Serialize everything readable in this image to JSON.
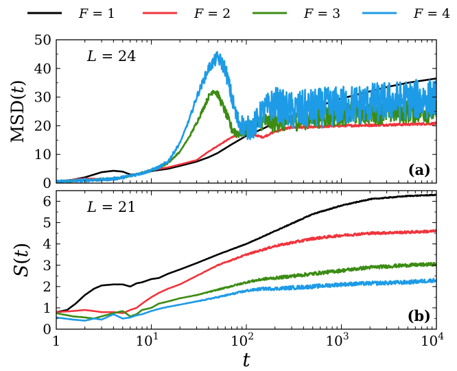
{
  "legend": {
    "position": "top",
    "entries": [
      {
        "label": "F = 1",
        "color": "#000000"
      },
      {
        "label": "F = 2",
        "color": "#f0343c"
      },
      {
        "label": "F = 3",
        "color": "#3c8c14"
      },
      {
        "label": "F = 4",
        "color": "#1e9be6"
      }
    ]
  },
  "chart_data": [
    {
      "type": "line",
      "panel_label": "(a)",
      "annotation": "L = 24",
      "ylabel": "MSD(t)",
      "xlabel": "",
      "xscale": "log",
      "xlim": [
        1,
        10000
      ],
      "ylim": [
        0,
        50
      ],
      "yticks": [
        0,
        10,
        20,
        30,
        40,
        50
      ],
      "series": [
        {
          "name": "F = 1",
          "color": "#000000",
          "noise": 0,
          "x": [
            1,
            1.5,
            2,
            3,
            4,
            5,
            6,
            8,
            10,
            15,
            20,
            30,
            40,
            50,
            70,
            100,
            150,
            200,
            300,
            500,
            700,
            1000,
            2000,
            3000,
            5000,
            10000
          ],
          "y": [
            0.5,
            1.2,
            2.0,
            3.8,
            4.3,
            4.0,
            3.0,
            3.2,
            4.2,
            5.0,
            6.0,
            7.5,
            9.0,
            10.5,
            13.5,
            16.5,
            19.0,
            21.0,
            23.5,
            26.0,
            27.8,
            29.5,
            32.0,
            33.5,
            35.0,
            36.5
          ]
        },
        {
          "name": "F = 2",
          "color": "#f0343c",
          "noise": 0.4,
          "x": [
            1,
            1.5,
            2,
            3,
            4,
            5,
            6,
            8,
            10,
            15,
            20,
            30,
            40,
            50,
            70,
            100,
            150,
            200,
            300,
            500,
            700,
            1000,
            2000,
            5000,
            10000
          ],
          "y": [
            0.5,
            1.2,
            1.6,
            1.4,
            1.2,
            1.8,
            2.5,
            3.5,
            4.5,
            5.5,
            6.5,
            8.0,
            11.0,
            13.0,
            16.0,
            17.5,
            16.0,
            18.0,
            19.5,
            19.5,
            19.8,
            20.0,
            20.2,
            20.5,
            20.8
          ]
        },
        {
          "name": "F = 3",
          "color": "#3c8c14",
          "noise": 4.0,
          "x": [
            1,
            2,
            3,
            4,
            5,
            6,
            8,
            10,
            12,
            15,
            20,
            25,
            30,
            40,
            45,
            50,
            60,
            70,
            80,
            100,
            120,
            150,
            200,
            300,
            500,
            1000,
            2000,
            5000,
            10000
          ],
          "y": [
            0.5,
            1.0,
            1.2,
            1.5,
            2.0,
            2.5,
            3.5,
            4.5,
            5.5,
            7.0,
            11.0,
            16.0,
            21.0,
            30.0,
            32.5,
            31.0,
            25.0,
            19.0,
            17.5,
            18.5,
            19.5,
            21.5,
            21.0,
            22.0,
            23.0,
            24.0,
            24.5,
            25.0,
            25.0
          ]
        },
        {
          "name": "F = 4",
          "color": "#1e9be6",
          "noise": 7.0,
          "x": [
            1,
            2,
            3,
            4,
            5,
            6,
            8,
            10,
            12,
            15,
            20,
            25,
            30,
            40,
            50,
            60,
            70,
            80,
            100,
            120,
            150,
            200,
            250,
            300,
            500,
            1000,
            2000,
            5000,
            10000
          ],
          "y": [
            0.5,
            1.0,
            1.2,
            1.5,
            2.0,
            2.5,
            3.5,
            4.5,
            5.5,
            7.5,
            14.0,
            22.0,
            30.0,
            40.0,
            44.0,
            40.0,
            30.0,
            22.0,
            19.0,
            20.0,
            25.0,
            28.0,
            26.0,
            25.0,
            26.0,
            27.0,
            28.0,
            29.0,
            29.5
          ]
        }
      ]
    },
    {
      "type": "line",
      "panel_label": "(b)",
      "annotation": "L = 21",
      "ylabel": "S(t)",
      "xlabel": "t",
      "xscale": "log",
      "xlim": [
        1,
        10000
      ],
      "ylim": [
        0,
        6.5
      ],
      "yticks": [
        0,
        1,
        2,
        3,
        4,
        5,
        6
      ],
      "xticks": [
        {
          "value": 1,
          "label": "1"
        },
        {
          "value": 10,
          "label": "10",
          "exp": "1"
        },
        {
          "value": 100,
          "label": "10",
          "exp": "2"
        },
        {
          "value": 1000,
          "label": "10",
          "exp": "3"
        },
        {
          "value": 10000,
          "label": "10",
          "exp": "4"
        }
      ],
      "series": [
        {
          "name": "F = 1",
          "color": "#000000",
          "noise": 0.02,
          "x": [
            1,
            1.3,
            1.6,
            2,
            2.5,
            3,
            4,
            5,
            6,
            7,
            8,
            10,
            12,
            15,
            20,
            30,
            50,
            100,
            200,
            500,
            1000,
            2000,
            5000,
            10000
          ],
          "y": [
            0.8,
            0.9,
            1.2,
            1.6,
            1.9,
            2.05,
            2.1,
            2.1,
            2.0,
            2.15,
            2.2,
            2.35,
            2.4,
            2.6,
            2.8,
            3.1,
            3.5,
            4.0,
            4.6,
            5.4,
            5.8,
            6.1,
            6.25,
            6.3
          ]
        },
        {
          "name": "F = 2",
          "color": "#f0343c",
          "noise": 0.06,
          "x": [
            1,
            1.5,
            2,
            2.5,
            3,
            4,
            5,
            6,
            7,
            8,
            10,
            12,
            15,
            20,
            30,
            50,
            100,
            200,
            500,
            1000,
            2000,
            5000,
            10000
          ],
          "y": [
            0.8,
            0.85,
            0.9,
            0.85,
            0.8,
            0.8,
            0.75,
            0.9,
            1.0,
            1.2,
            1.5,
            1.7,
            1.9,
            2.1,
            2.5,
            3.0,
            3.5,
            3.9,
            4.25,
            4.4,
            4.5,
            4.55,
            4.6
          ]
        },
        {
          "name": "F = 3",
          "color": "#3c8c14",
          "noise": 0.08,
          "x": [
            1,
            1.5,
            2,
            2.5,
            3,
            4,
            5,
            6,
            7,
            8,
            10,
            12,
            15,
            20,
            30,
            50,
            100,
            150,
            200,
            500,
            1000,
            2000,
            5000,
            10000
          ],
          "y": [
            0.75,
            0.6,
            0.55,
            0.5,
            0.6,
            0.75,
            0.85,
            0.6,
            0.7,
            0.9,
            1.0,
            1.2,
            1.3,
            1.45,
            1.6,
            1.85,
            2.2,
            2.35,
            2.4,
            2.6,
            2.75,
            2.9,
            3.0,
            3.05
          ]
        },
        {
          "name": "F = 4",
          "color": "#1e9be6",
          "noise": 0.09,
          "x": [
            1,
            1.5,
            2,
            2.5,
            3,
            4,
            5,
            6,
            7,
            8,
            10,
            12,
            15,
            20,
            30,
            50,
            100,
            150,
            200,
            500,
            1000,
            2000,
            5000,
            10000
          ],
          "y": [
            0.55,
            0.45,
            0.4,
            0.5,
            0.45,
            0.7,
            0.5,
            0.55,
            0.65,
            0.7,
            0.85,
            0.95,
            1.05,
            1.15,
            1.3,
            1.5,
            1.8,
            1.9,
            1.9,
            2.0,
            2.1,
            2.15,
            2.2,
            2.3
          ]
        }
      ]
    }
  ]
}
